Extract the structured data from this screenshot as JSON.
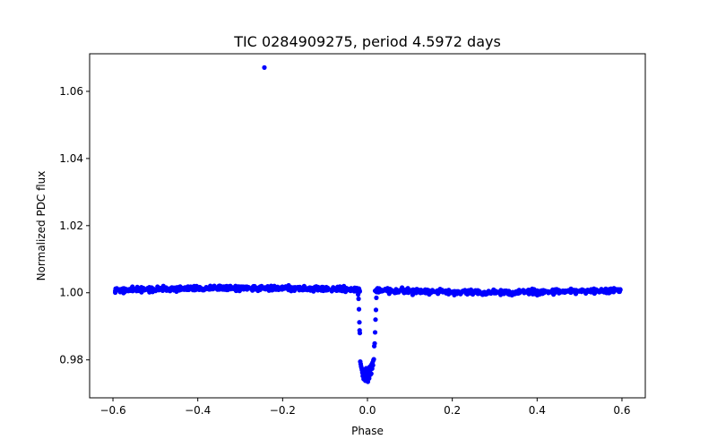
{
  "chart_data": {
    "type": "scatter",
    "title": "TIC 0284909275, period 4.5972 days",
    "xlabel": "Phase",
    "ylabel": "Normalized PDC flux",
    "xlim": [
      -0.655,
      0.655
    ],
    "ylim": [
      0.9687,
      1.0712
    ],
    "xticks": [
      -0.6,
      -0.4,
      -0.2,
      0.0,
      0.2,
      0.4,
      0.6
    ],
    "xtick_labels": [
      "−0.6",
      "−0.4",
      "−0.2",
      "0.0",
      "0.2",
      "0.4",
      "0.6"
    ],
    "yticks": [
      0.98,
      1.0,
      1.02,
      1.04,
      1.06
    ],
    "ytick_labels": [
      "0.98",
      "1.00",
      "1.02",
      "1.04",
      "1.06"
    ],
    "grid": false,
    "legend": "none",
    "marker_color": "#0000ff",
    "baseline": {
      "x_start": -0.598,
      "x_end": 0.597,
      "n_points": 1050,
      "level": 1.0008,
      "scatter": 0.0007,
      "transit_gap": [
        -0.018,
        0.018
      ]
    },
    "outlier": [
      {
        "x": -0.243,
        "y": 1.0671
      }
    ],
    "transit_points": [
      {
        "x": -0.022,
        "y": 0.9995
      },
      {
        "x": -0.021,
        "y": 0.9982
      },
      {
        "x": -0.02,
        "y": 0.9951
      },
      {
        "x": -0.019,
        "y": 0.9912
      },
      {
        "x": -0.0185,
        "y": 0.9888
      },
      {
        "x": -0.018,
        "y": 0.988
      },
      {
        "x": -0.017,
        "y": 0.9795
      },
      {
        "x": -0.016,
        "y": 0.9788
      },
      {
        "x": -0.015,
        "y": 0.9781
      },
      {
        "x": -0.014,
        "y": 0.9776
      },
      {
        "x": -0.013,
        "y": 0.977
      },
      {
        "x": -0.012,
        "y": 0.9762
      },
      {
        "x": -0.011,
        "y": 0.9752
      },
      {
        "x": -0.01,
        "y": 0.976
      },
      {
        "x": -0.009,
        "y": 0.9743
      },
      {
        "x": -0.008,
        "y": 0.9771
      },
      {
        "x": -0.007,
        "y": 0.9748
      },
      {
        "x": -0.006,
        "y": 0.9757
      },
      {
        "x": -0.005,
        "y": 0.9738
      },
      {
        "x": -0.004,
        "y": 0.9763
      },
      {
        "x": -0.003,
        "y": 0.9775
      },
      {
        "x": -0.002,
        "y": 0.9742
      },
      {
        "x": -0.001,
        "y": 0.9769
      },
      {
        "x": 0.0,
        "y": 0.9755
      },
      {
        "x": 0.001,
        "y": 0.9735
      },
      {
        "x": 0.002,
        "y": 0.9761
      },
      {
        "x": 0.003,
        "y": 0.9772
      },
      {
        "x": 0.004,
        "y": 0.9745
      },
      {
        "x": 0.005,
        "y": 0.9779
      },
      {
        "x": 0.006,
        "y": 0.9768
      },
      {
        "x": 0.007,
        "y": 0.9756
      },
      {
        "x": 0.008,
        "y": 0.9782
      },
      {
        "x": 0.009,
        "y": 0.9759
      },
      {
        "x": 0.01,
        "y": 0.9787
      },
      {
        "x": 0.011,
        "y": 0.9774
      },
      {
        "x": 0.012,
        "y": 0.9792
      },
      {
        "x": 0.013,
        "y": 0.9784
      },
      {
        "x": 0.014,
        "y": 0.9799
      },
      {
        "x": 0.015,
        "y": 0.9802
      },
      {
        "x": 0.016,
        "y": 0.9841
      },
      {
        "x": 0.017,
        "y": 0.9849
      },
      {
        "x": 0.018,
        "y": 0.9882
      },
      {
        "x": 0.019,
        "y": 0.992
      },
      {
        "x": 0.02,
        "y": 0.9949
      },
      {
        "x": 0.021,
        "y": 0.9985
      }
    ]
  }
}
